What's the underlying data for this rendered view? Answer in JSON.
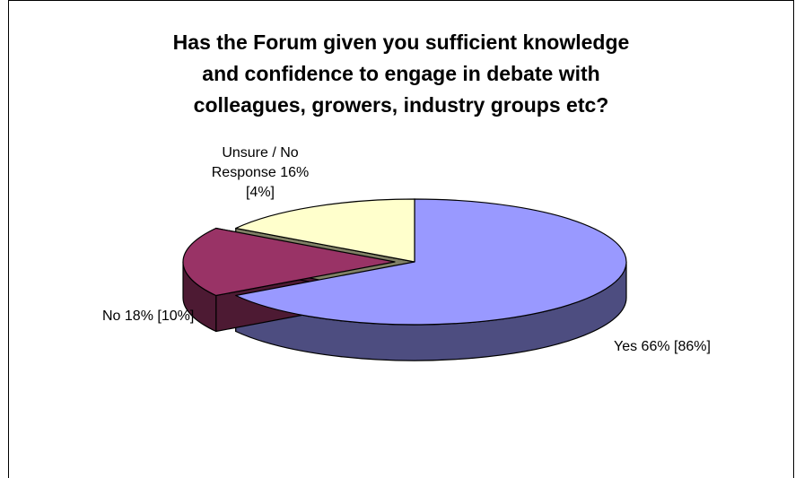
{
  "chart_data": {
    "type": "pie",
    "style": "3d-exploded",
    "title_lines": [
      "Has the Forum given you sufficient knowledge",
      "and confidence to engage in debate with",
      "colleagues, growers, industry groups etc?"
    ],
    "slices": [
      {
        "key": "yes",
        "label": "Yes 66% [86%]",
        "value": 66,
        "prior_value": 86,
        "color": "#9999ff",
        "side_color": "#4d4d80"
      },
      {
        "key": "no",
        "label": "No 18% [10%]",
        "value": 18,
        "prior_value": 10,
        "color": "#993366",
        "side_color": "#4d1a33"
      },
      {
        "key": "unsure",
        "label_lines": [
          "Unsure / No",
          "Response 16%",
          "[4%]"
        ],
        "value": 16,
        "prior_value": 4,
        "color": "#ffffcc",
        "side_color": "#808066"
      }
    ],
    "legend": "none"
  }
}
